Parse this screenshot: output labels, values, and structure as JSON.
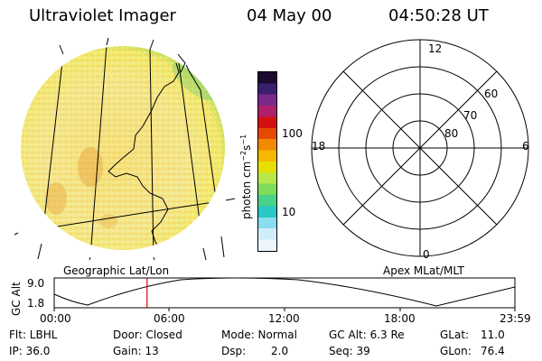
{
  "header": {
    "instrument": "Ultraviolet Imager",
    "date": "04 May 00",
    "time": "04:50:28 UT"
  },
  "colorbar": {
    "unit_label": "photon cm⁻²s⁻¹",
    "tick_100": "100",
    "tick_10": "10",
    "colors_top_to_bottom": [
      "#1a0a2e",
      "#3a1f6e",
      "#7a2a8a",
      "#b0206a",
      "#d41010",
      "#e54a00",
      "#f08a00",
      "#f6b800",
      "#e6e000",
      "#b6e84a",
      "#7ddc5a",
      "#48d28a",
      "#28c8c4",
      "#8adcf0",
      "#cfeefa",
      "#eef6fb"
    ]
  },
  "polar_plot": {
    "label_top": "12",
    "label_bottom": "0",
    "label_left": "18",
    "label_right": "6",
    "ring_labels": [
      "60",
      "70",
      "80"
    ]
  },
  "frame_labels": {
    "left": "Geographic Lat/Lon",
    "right": "Apex MLat/MLT"
  },
  "timeline": {
    "axis_label": "GC Alt",
    "y_max": "9.0",
    "y_min": "1.8",
    "x_ticks": [
      "00:00",
      "06:00",
      "12:00",
      "18:00",
      "23:59"
    ],
    "current_time_fraction": 0.2016
  },
  "status": {
    "flt": "Flt: LBHL",
    "ip": "IP: 36.0",
    "door": "Door: Closed",
    "gain": "Gain: 13",
    "mode": "Mode: Normal",
    "dsp": "Dsp:",
    "dsp_value": "2.0",
    "gc_alt": "GC Alt: 6.3 Re",
    "seq": "Seq: 39",
    "glat": "GLat:",
    "glat_value": "11.0",
    "glon": "GLon:",
    "glon_value": "76.4"
  }
}
